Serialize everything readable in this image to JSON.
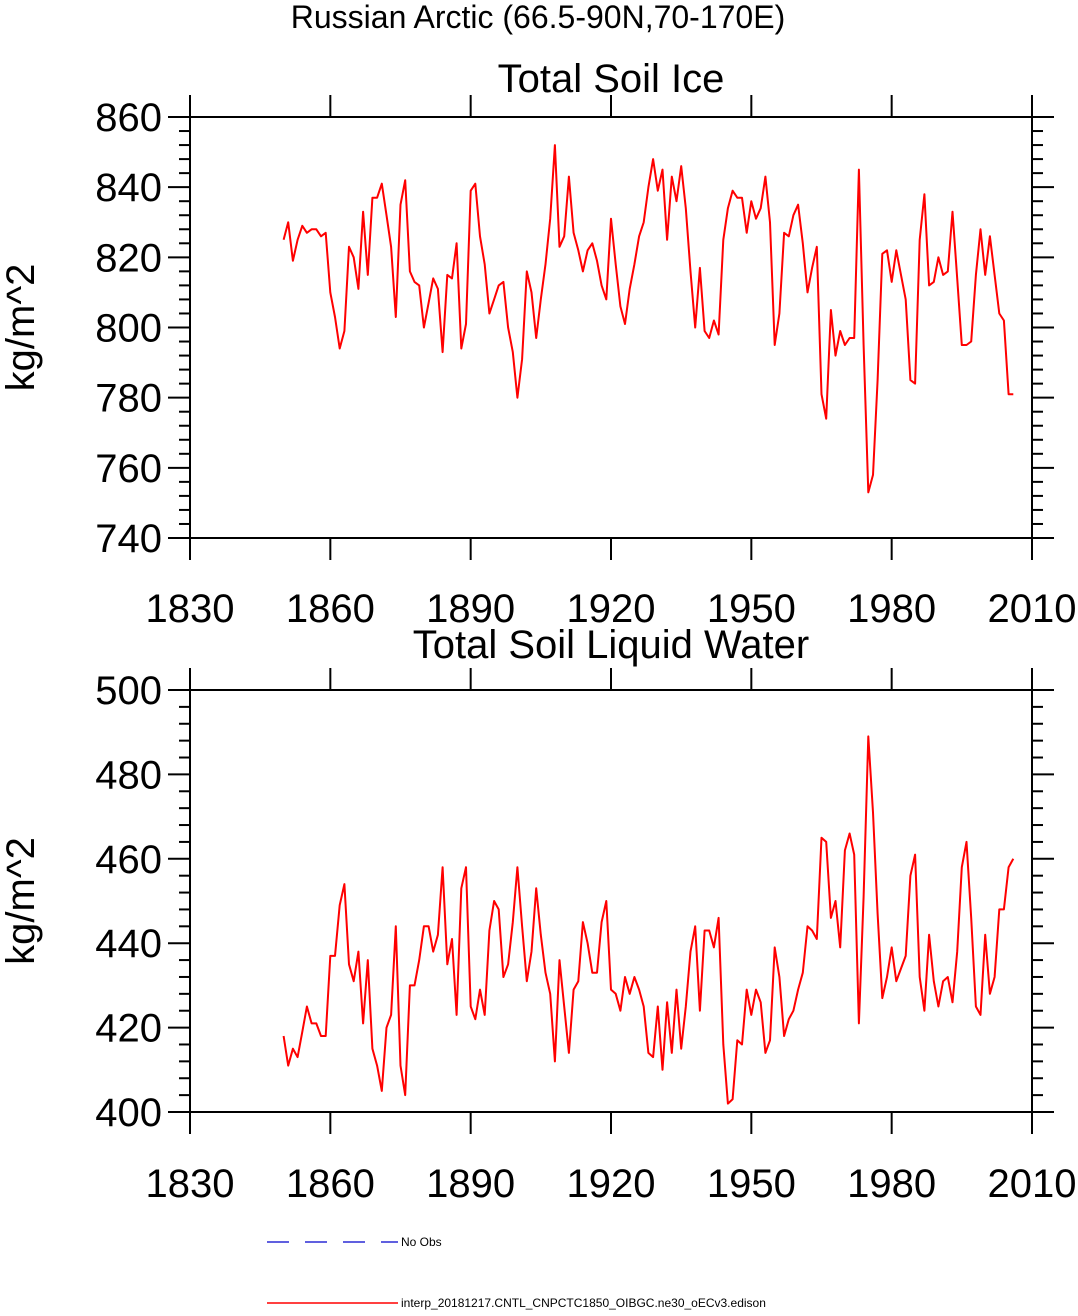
{
  "page_title": "Russian Arctic (66.5-90N,70-170E)",
  "colors": {
    "model": "#ff0000",
    "obs": "#0000cc",
    "axes": "#000000"
  },
  "legend": [
    {
      "label": "No Obs",
      "style": "dashed",
      "color": "#0000cc"
    },
    {
      "label": "interp_20181217.CNTL_CNPCTC1850_OIBGC.ne30_oECv3.edison",
      "style": "solid",
      "color": "#ff0000"
    }
  ],
  "chart_data": [
    {
      "type": "line",
      "title": "Total Soil Ice",
      "xlabel": "",
      "ylabel": "kg/m^2",
      "xlim": [
        1830,
        2010
      ],
      "ylim": [
        740,
        860
      ],
      "xticks": [
        1830,
        1860,
        1890,
        1920,
        1950,
        1980,
        2010
      ],
      "yticks": [
        740,
        760,
        780,
        800,
        820,
        840,
        860
      ],
      "x_start": 1850,
      "series": [
        {
          "name": "interp_20181217.CNTL_CNPCTC1850_OIBGC.ne30_oECv3.edison",
          "values": [
            825,
            830,
            819,
            825,
            829,
            827,
            828,
            828,
            826,
            827,
            810,
            803,
            794,
            799,
            823,
            820,
            811,
            833,
            815,
            837,
            837,
            841,
            832,
            823,
            803,
            835,
            842,
            816,
            813,
            812,
            800,
            807,
            814,
            811,
            793,
            815,
            814,
            824,
            794,
            801,
            839,
            841,
            826,
            818,
            804,
            808,
            812,
            813,
            800,
            793,
            780,
            791,
            816,
            810,
            797,
            808,
            818,
            831,
            852,
            823,
            826,
            843,
            827,
            822,
            816,
            822,
            824,
            819,
            812,
            808,
            831,
            818,
            806,
            801,
            811,
            818,
            826,
            830,
            840,
            848,
            839,
            845,
            825,
            843,
            836,
            846,
            834,
            816,
            800,
            817,
            799,
            797,
            802,
            798,
            825,
            834,
            839,
            837,
            837,
            827,
            836,
            831,
            834,
            843,
            830,
            795,
            804,
            827,
            826,
            832,
            835,
            824,
            810,
            817,
            823,
            781,
            774,
            805,
            792,
            799,
            795,
            797,
            797,
            845,
            795,
            753,
            758,
            785,
            821,
            822,
            813,
            822,
            815,
            808,
            785,
            784,
            825,
            838,
            812,
            813,
            820,
            815,
            816,
            833,
            814,
            795,
            795,
            796,
            815,
            828,
            815,
            826,
            815,
            804,
            802,
            781,
            781
          ]
        }
      ]
    },
    {
      "type": "line",
      "title": "Total Soil Liquid Water",
      "xlabel": "",
      "ylabel": "kg/m^2",
      "xlim": [
        1830,
        2010
      ],
      "ylim": [
        400,
        500
      ],
      "xticks": [
        1830,
        1860,
        1890,
        1920,
        1950,
        1980,
        2010
      ],
      "yticks": [
        400,
        420,
        440,
        460,
        480,
        500
      ],
      "x_start": 1850,
      "series": [
        {
          "name": "interp_20181217.CNTL_CNPCTC1850_OIBGC.ne30_oECv3.edison",
          "values": [
            418,
            411,
            415,
            413,
            419,
            425,
            421,
            421,
            418,
            418,
            437,
            437,
            449,
            454,
            435,
            431,
            438,
            421,
            436,
            415,
            411,
            405,
            420,
            423,
            444,
            411,
            404,
            430,
            430,
            436,
            444,
            444,
            438,
            442,
            458,
            435,
            441,
            423,
            453,
            458,
            425,
            422,
            429,
            423,
            443,
            450,
            448,
            432,
            435,
            445,
            458,
            444,
            431,
            438,
            453,
            442,
            433,
            428,
            412,
            436,
            425,
            414,
            429,
            431,
            445,
            440,
            433,
            433,
            445,
            450,
            429,
            428,
            424,
            432,
            428,
            432,
            429,
            425,
            414,
            413,
            425,
            410,
            426,
            414,
            429,
            415,
            425,
            438,
            444,
            424,
            443,
            443,
            439,
            446,
            416,
            402,
            403,
            417,
            416,
            429,
            423,
            429,
            426,
            414,
            417,
            439,
            432,
            418,
            422,
            424,
            429,
            433,
            444,
            443,
            441,
            465,
            464,
            446,
            450,
            439,
            462,
            466,
            461,
            421,
            451,
            489,
            471,
            447,
            427,
            432,
            439,
            431,
            434,
            437,
            456,
            461,
            432,
            424,
            442,
            431,
            425,
            431,
            432,
            426,
            438,
            458,
            464,
            446,
            425,
            423,
            442,
            428,
            432,
            448,
            448,
            458,
            460
          ]
        }
      ]
    }
  ]
}
